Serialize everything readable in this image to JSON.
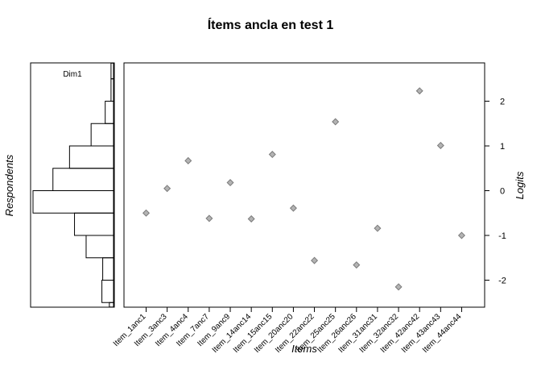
{
  "chart_data": {
    "type": "scatter",
    "title": "Ítems ancla en test 1",
    "xlabel": "Items",
    "ylabel": "Logits",
    "ylim": [
      -2.6,
      2.85
    ],
    "yticks": [
      2,
      1,
      0,
      -1,
      -2
    ],
    "grid": false,
    "categories": [
      "Item_1anc1",
      "Item_3anc3",
      "Item_4anc4",
      "Item_7anc7",
      "Item_9anc9",
      "Item_14anc14",
      "Item_15anc15",
      "Item_20anc20",
      "Item_22anc22",
      "Item_25anc25",
      "Item_26anc26",
      "Item_31anc31",
      "Item_32anc32",
      "Item_42anc42",
      "Item_43anc43",
      "Item_44anc44"
    ],
    "series": [
      {
        "values": [
          -0.5,
          0.05,
          0.67,
          -0.62,
          0.18,
          -0.63,
          0.81,
          -0.39,
          -1.56,
          1.54,
          -1.66,
          -0.84,
          -2.15,
          2.23,
          1.01,
          -1.0
        ]
      }
    ],
    "person_panel": {
      "ylabel": "Respondents",
      "dimension_label": "Dim1",
      "bins": [
        {
          "from": 2.5,
          "to": 2.85,
          "count": 0.03
        },
        {
          "from": 2.0,
          "to": 2.5,
          "count": 0.03
        },
        {
          "from": 1.5,
          "to": 2.0,
          "count": 0.1
        },
        {
          "from": 1.0,
          "to": 1.5,
          "count": 0.27
        },
        {
          "from": 0.5,
          "to": 1.0,
          "count": 0.53
        },
        {
          "from": 0.0,
          "to": 0.5,
          "count": 0.73
        },
        {
          "from": -0.5,
          "to": 0.0,
          "count": 0.97
        },
        {
          "from": -1.0,
          "to": -0.5,
          "count": 0.47
        },
        {
          "from": -1.5,
          "to": -1.0,
          "count": 0.33
        },
        {
          "from": -2.0,
          "to": -1.5,
          "count": 0.13
        },
        {
          "from": -2.5,
          "to": -2.0,
          "count": 0.14
        },
        {
          "from": -2.6,
          "to": -2.5,
          "count": 0.05
        }
      ]
    }
  },
  "colors": {
    "point_fill": "#b3b3b3",
    "point_stroke": "#7a7a7a",
    "axis": "#000000"
  }
}
